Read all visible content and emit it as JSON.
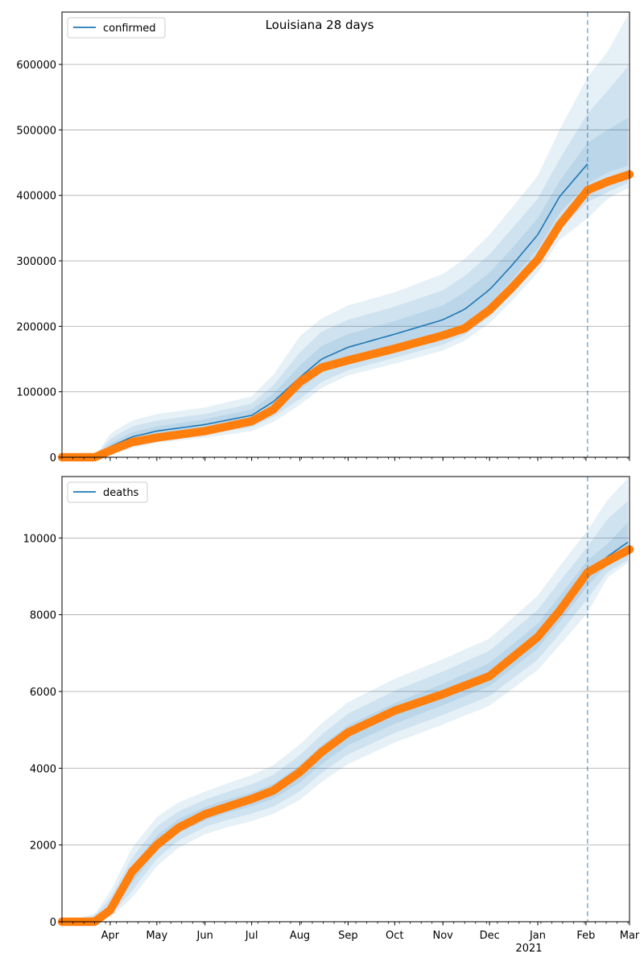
{
  "figure": {
    "title": "Louisiana 28 days"
  },
  "colors": {
    "model_line": "#1f77b4",
    "band": "#1f77b4",
    "observed": "#ff7f0e",
    "grid": "#b0b0b0",
    "forecast_marker": "#1f77b4"
  },
  "x_axis": {
    "start": "2020-03-01",
    "end": "2021-03-01",
    "month_labels": [
      "Apr",
      "May",
      "Jun",
      "Jul",
      "Aug",
      "Sep",
      "Oct",
      "Nov",
      "Dec",
      "Jan",
      "Feb",
      "Mar"
    ],
    "year_label": "2021",
    "forecast_date": "2021-02-02"
  },
  "chart_data": [
    {
      "type": "line",
      "legend": [
        "confirmed"
      ],
      "legend_position": "top-left",
      "grid": "horizontal",
      "ylim": [
        0,
        680000
      ],
      "yticks": [
        "0",
        "100000",
        "200000",
        "300000",
        "400000",
        "500000",
        "600000"
      ],
      "dates": [
        "2020-03-01",
        "2020-03-22",
        "2020-04-01",
        "2020-04-15",
        "2020-05-01",
        "2020-06-01",
        "2020-07-01",
        "2020-07-15",
        "2020-08-01",
        "2020-08-15",
        "2020-09-01",
        "2020-10-01",
        "2020-11-01",
        "2020-11-15",
        "2020-12-01",
        "2020-12-15",
        "2021-01-01",
        "2021-01-15",
        "2021-02-02",
        "2021-02-15",
        "2021-03-01"
      ],
      "series": [
        {
          "name": "confirmed",
          "kind": "model",
          "values": [
            0,
            0,
            16000,
            31000,
            40000,
            50000,
            64000,
            85000,
            122000,
            150000,
            168000,
            188000,
            210000,
            226000,
            256000,
            292000,
            340000,
            398000,
            448000,
            null,
            null
          ]
        },
        {
          "kind": "band-50",
          "lower": [
            0,
            0,
            11000,
            24000,
            33000,
            42000,
            54000,
            72000,
            103000,
            130000,
            148000,
            166000,
            187000,
            203000,
            233000,
            270000,
            318000,
            373000,
            418000,
            435000,
            446000
          ],
          "upper": [
            0,
            0,
            21000,
            38000,
            47000,
            58000,
            73000,
            97000,
            140000,
            170000,
            188000,
            208000,
            232000,
            252000,
            282000,
            318000,
            365000,
            422000,
            480000,
            500000,
            520000
          ]
        },
        {
          "kind": "band-90",
          "lower": [
            0,
            0,
            7000,
            18000,
            27000,
            35000,
            46000,
            62000,
            89000,
            115000,
            133000,
            152000,
            172000,
            187000,
            215000,
            250000,
            295000,
            348000,
            390000,
            405000,
            420000
          ],
          "upper": [
            0,
            0,
            28000,
            47000,
            56000,
            66000,
            82000,
            110000,
            160000,
            192000,
            210000,
            230000,
            255000,
            277000,
            310000,
            348000,
            395000,
            455000,
            525000,
            560000,
            600000
          ]
        },
        {
          "kind": "band-99",
          "lower": [
            0,
            0,
            4000,
            14000,
            22000,
            30000,
            40000,
            54000,
            80000,
            106000,
            125000,
            143000,
            163000,
            178000,
            205000,
            238000,
            282000,
            332000,
            365000,
            395000,
            412000
          ],
          "upper": [
            0,
            0,
            36000,
            56000,
            66000,
            76000,
            93000,
            126000,
            185000,
            212000,
            232000,
            252000,
            280000,
            303000,
            340000,
            380000,
            430000,
            500000,
            580000,
            620000,
            680000
          ]
        },
        {
          "name": "observed",
          "kind": "observed",
          "values": [
            0,
            0,
            10000,
            23000,
            30000,
            40000,
            55000,
            73000,
            115000,
            137000,
            148000,
            166000,
            186000,
            197000,
            225000,
            258000,
            302000,
            355000,
            408000,
            421000,
            432000
          ]
        }
      ]
    },
    {
      "type": "line",
      "legend": [
        "deaths"
      ],
      "legend_position": "top-left",
      "grid": "horizontal",
      "ylim": [
        0,
        11600
      ],
      "yticks": [
        "0",
        "2000",
        "4000",
        "6000",
        "8000",
        "10000"
      ],
      "dates": [
        "2020-03-01",
        "2020-03-22",
        "2020-04-01",
        "2020-04-15",
        "2020-05-01",
        "2020-05-15",
        "2020-06-01",
        "2020-06-15",
        "2020-07-01",
        "2020-07-15",
        "2020-08-01",
        "2020-08-15",
        "2020-09-01",
        "2020-10-01",
        "2020-11-01",
        "2020-12-01",
        "2021-01-01",
        "2021-01-15",
        "2021-02-02",
        "2021-02-15",
        "2021-03-01"
      ],
      "series": [
        {
          "name": "deaths",
          "kind": "model",
          "values": [
            0,
            80,
            330,
            1200,
            2020,
            2480,
            2800,
            2990,
            3180,
            3390,
            3850,
            4350,
            4850,
            5420,
            5900,
            6420,
            7420,
            8120,
            9060,
            9520,
            9920
          ]
        },
        {
          "kind": "band-50",
          "lower": [
            0,
            40,
            230,
            1000,
            1850,
            2310,
            2640,
            2830,
            3010,
            3200,
            3630,
            4110,
            4600,
            5160,
            5640,
            6140,
            7120,
            7810,
            8750,
            9300,
            9560
          ],
          "upper": [
            0,
            120,
            460,
            1430,
            2250,
            2680,
            2990,
            3180,
            3370,
            3600,
            4080,
            4600,
            5120,
            5700,
            6200,
            6740,
            7760,
            8480,
            9420,
            9850,
            10450
          ]
        },
        {
          "kind": "band-90",
          "lower": [
            0,
            20,
            160,
            800,
            1640,
            2120,
            2470,
            2650,
            2820,
            3000,
            3400,
            3880,
            4360,
            4920,
            5390,
            5880,
            6830,
            7500,
            8420,
            9120,
            9450
          ],
          "upper": [
            0,
            160,
            610,
            1660,
            2480,
            2880,
            3180,
            3380,
            3580,
            3830,
            4340,
            4880,
            5420,
            6020,
            6520,
            7060,
            8130,
            8860,
            9780,
            10500,
            11000
          ]
        },
        {
          "kind": "band-99",
          "lower": [
            0,
            10,
            110,
            620,
            1450,
            1930,
            2280,
            2460,
            2620,
            2810,
            3180,
            3640,
            4110,
            4670,
            5140,
            5630,
            6560,
            7200,
            8050,
            8980,
            9380
          ],
          "upper": [
            0,
            200,
            780,
            1920,
            2730,
            3110,
            3390,
            3600,
            3820,
            4080,
            4620,
            5170,
            5720,
            6330,
            6840,
            7380,
            8500,
            9260,
            10200,
            11000,
            11600
          ]
        },
        {
          "name": "observed",
          "kind": "observed",
          "values": [
            0,
            0,
            300,
            1300,
            2000,
            2450,
            2800,
            2990,
            3200,
            3420,
            3900,
            4420,
            4930,
            5500,
            5930,
            6400,
            7420,
            8100,
            9100,
            9400,
            9700
          ]
        }
      ]
    }
  ]
}
